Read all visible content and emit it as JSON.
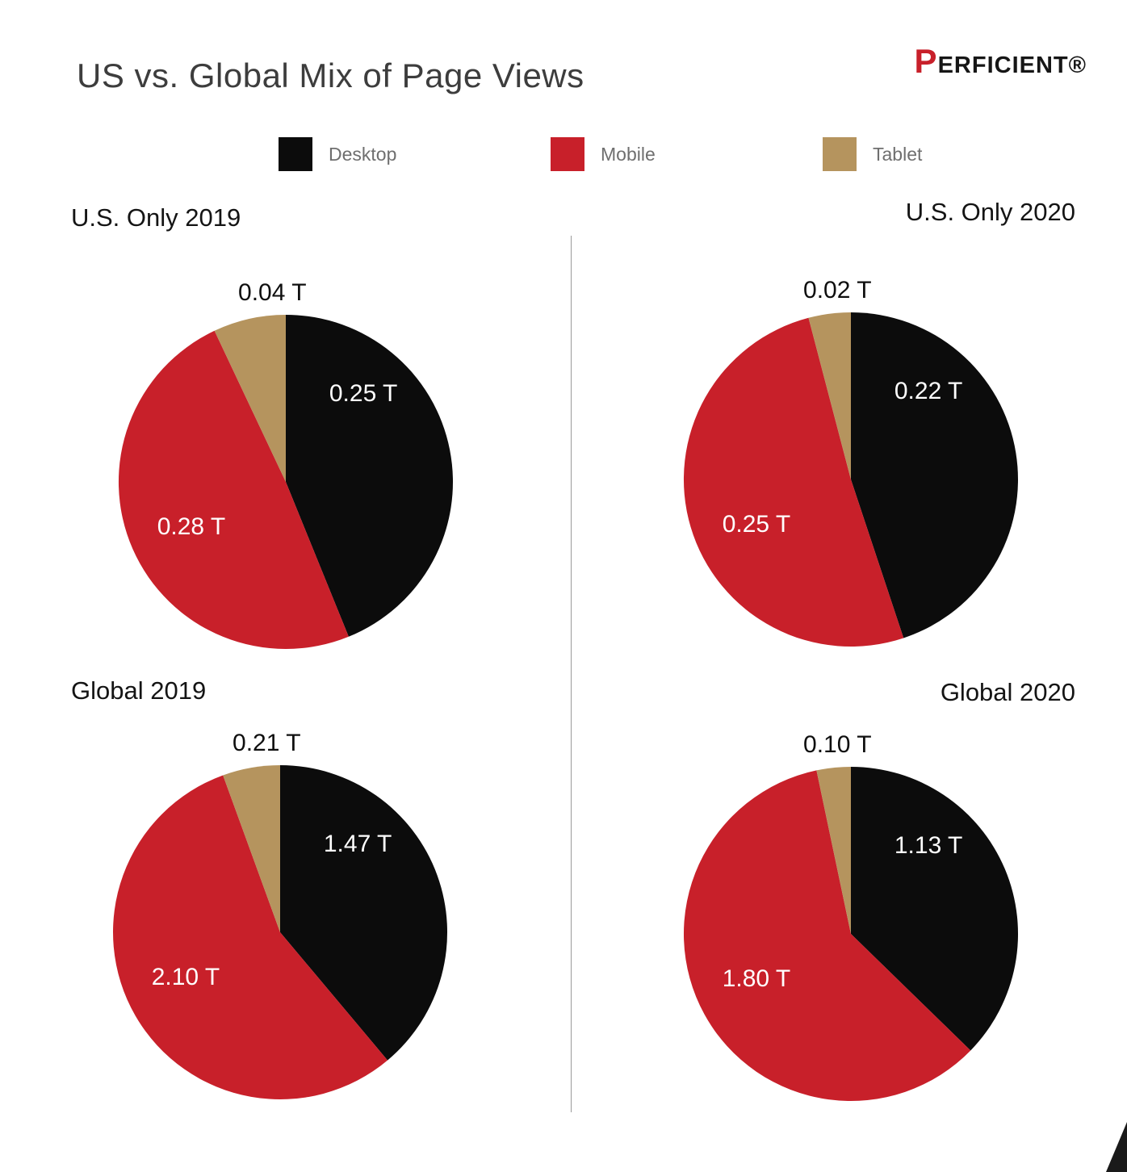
{
  "title": "US vs. Global Mix of Page Views",
  "logo": {
    "brand": "PERFICIENT®"
  },
  "legend": [
    {
      "label": "Desktop",
      "color": "#0c0c0c"
    },
    {
      "label": "Mobile",
      "color": "#c8202a"
    },
    {
      "label": "Tablet",
      "color": "#b5945e"
    }
  ],
  "chart_data": [
    {
      "type": "pie",
      "title": "U.S. Only 2019",
      "start_angle": "top",
      "direction": "clockwise",
      "slices": [
        {
          "label": "Desktop",
          "value": 0.25,
          "display": "0.25 T",
          "color": "#0c0c0c"
        },
        {
          "label": "Mobile",
          "value": 0.28,
          "display": "0.28 T",
          "color": "#c8202a"
        },
        {
          "label": "Tablet",
          "value": 0.04,
          "display": "0.04 T",
          "color": "#b5945e"
        }
      ]
    },
    {
      "type": "pie",
      "title": "U.S. Only 2020",
      "start_angle": "top",
      "direction": "clockwise",
      "slices": [
        {
          "label": "Desktop",
          "value": 0.22,
          "display": "0.22 T",
          "color": "#0c0c0c"
        },
        {
          "label": "Mobile",
          "value": 0.25,
          "display": "0.25 T",
          "color": "#c8202a"
        },
        {
          "label": "Tablet",
          "value": 0.02,
          "display": "0.02 T",
          "color": "#b5945e"
        }
      ]
    },
    {
      "type": "pie",
      "title": "Global 2019",
      "start_angle": "top",
      "direction": "clockwise",
      "slices": [
        {
          "label": "Desktop",
          "value": 1.47,
          "display": "1.47 T",
          "color": "#0c0c0c"
        },
        {
          "label": "Mobile",
          "value": 2.1,
          "display": "2.10 T",
          "color": "#c8202a"
        },
        {
          "label": "Tablet",
          "value": 0.21,
          "display": "0.21 T",
          "color": "#b5945e"
        }
      ]
    },
    {
      "type": "pie",
      "title": "Global 2020",
      "start_angle": "top",
      "direction": "clockwise",
      "slices": [
        {
          "label": "Desktop",
          "value": 1.13,
          "display": "1.13 T",
          "color": "#0c0c0c"
        },
        {
          "label": "Mobile",
          "value": 1.8,
          "display": "1.80 T",
          "color": "#c8202a"
        },
        {
          "label": "Tablet",
          "value": 0.1,
          "display": "0.10 T",
          "color": "#b5945e"
        }
      ]
    }
  ]
}
